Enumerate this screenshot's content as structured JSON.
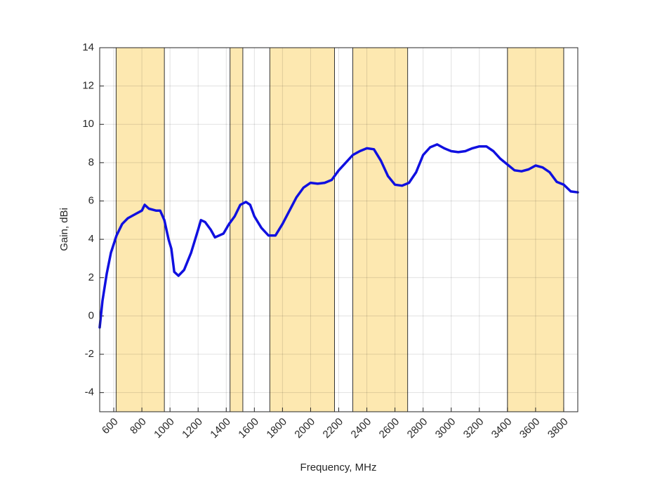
{
  "chart_data": {
    "type": "line",
    "x_label": "Frequency, MHz",
    "y_label": "Gain, dBi",
    "xlim": [
      500,
      3900
    ],
    "ylim": [
      -5,
      14
    ],
    "xticks": [
      600,
      800,
      1000,
      1200,
      1400,
      1600,
      1800,
      2000,
      2200,
      2400,
      2600,
      2800,
      3000,
      3200,
      3400,
      3600,
      3800
    ],
    "yticks": [
      -4,
      -2,
      0,
      2,
      4,
      6,
      8,
      10,
      12,
      14
    ],
    "grid": true,
    "band_color": "#fde8b0",
    "bands": [
      [
        617,
        960
      ],
      [
        1427,
        1518
      ],
      [
        1710,
        2170
      ],
      [
        2300,
        2690
      ],
      [
        3400,
        3800
      ]
    ],
    "x": [
      500,
      520,
      550,
      580,
      620,
      660,
      700,
      750,
      800,
      820,
      850,
      900,
      930,
      960,
      990,
      1010,
      1030,
      1060,
      1100,
      1150,
      1200,
      1220,
      1250,
      1290,
      1320,
      1350,
      1380,
      1420,
      1460,
      1500,
      1540,
      1570,
      1600,
      1650,
      1700,
      1750,
      1800,
      1850,
      1900,
      1950,
      2000,
      2050,
      2100,
      2150,
      2200,
      2250,
      2300,
      2350,
      2400,
      2450,
      2500,
      2550,
      2600,
      2650,
      2700,
      2750,
      2800,
      2850,
      2900,
      2950,
      3000,
      3050,
      3100,
      3150,
      3200,
      3250,
      3300,
      3350,
      3400,
      3450,
      3500,
      3550,
      3600,
      3650,
      3700,
      3750,
      3800,
      3850,
      3900
    ],
    "series": [
      {
        "color": "#1010e0",
        "values": [
          -0.6,
          0.8,
          2.2,
          3.3,
          4.2,
          4.8,
          5.1,
          5.3,
          5.5,
          5.8,
          5.6,
          5.5,
          5.5,
          5.0,
          4.0,
          3.5,
          2.3,
          2.1,
          2.4,
          3.3,
          4.5,
          5.0,
          4.9,
          4.5,
          4.1,
          4.2,
          4.3,
          4.8,
          5.2,
          5.8,
          5.95,
          5.8,
          5.2,
          4.6,
          4.2,
          4.2,
          4.8,
          5.5,
          6.2,
          6.7,
          6.95,
          6.9,
          6.95,
          7.1,
          7.6,
          8.0,
          8.4,
          8.6,
          8.75,
          8.7,
          8.1,
          7.3,
          6.85,
          6.8,
          6.95,
          7.5,
          8.4,
          8.8,
          8.95,
          8.75,
          8.6,
          8.55,
          8.6,
          8.75,
          8.85,
          8.85,
          8.6,
          8.2,
          7.9,
          7.6,
          7.55,
          7.65,
          7.85,
          7.75,
          7.5,
          7.0,
          6.85,
          6.5,
          6.45
        ]
      }
    ]
  }
}
